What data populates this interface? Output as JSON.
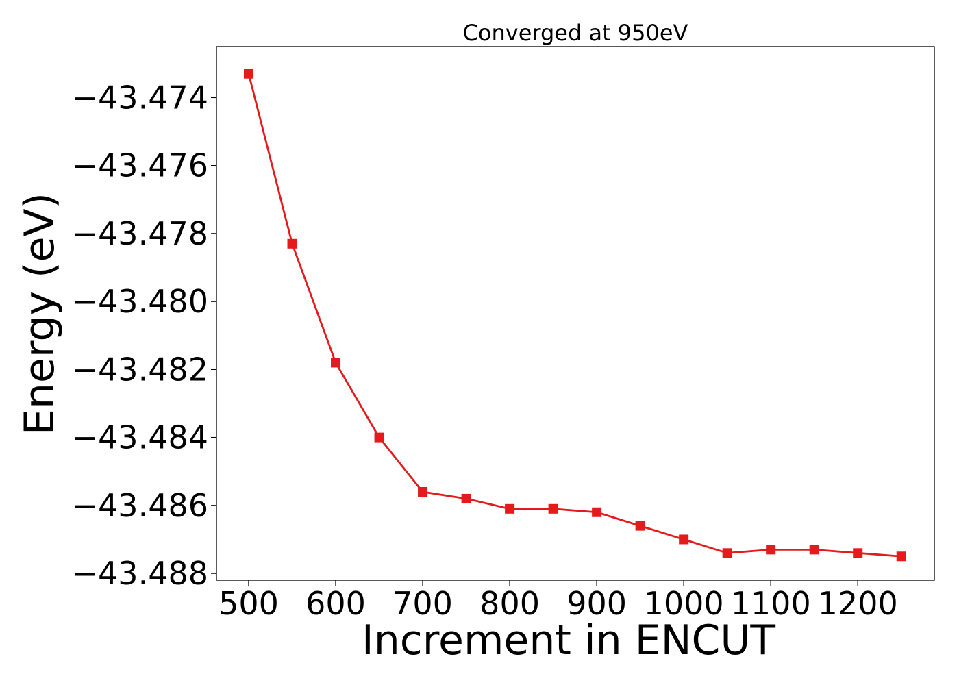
{
  "chart_data": {
    "type": "line",
    "title": "Converged at 950eV",
    "xlabel": "Increment in ENCUT",
    "ylabel": "Energy (eV)",
    "xlim": [
      463,
      1288
    ],
    "ylim": [
      -43.4882,
      -43.4725
    ],
    "x_ticks": [
      500,
      600,
      700,
      800,
      900,
      1000,
      1100,
      1200
    ],
    "y_ticks": [
      -43.474,
      -43.476,
      -43.478,
      -43.48,
      -43.482,
      -43.484,
      -43.486,
      -43.488
    ],
    "x_tick_labels": [
      "500",
      "600",
      "700",
      "800",
      "900",
      "1000",
      "1100",
      "1200"
    ],
    "y_tick_labels": [
      "−43.474",
      "−43.476",
      "−43.478",
      "−43.480",
      "−43.482",
      "−43.484",
      "−43.486",
      "−43.488"
    ],
    "grid": false,
    "series": [
      {
        "color": "#e41a1c",
        "marker": "square",
        "x": [
          500,
          550,
          600,
          650,
          700,
          750,
          800,
          850,
          900,
          950,
          1000,
          1050,
          1100,
          1150,
          1200,
          1250
        ],
        "y": [
          -43.4733,
          -43.4783,
          -43.4818,
          -43.484,
          -43.4856,
          -43.4858,
          -43.4861,
          -43.4861,
          -43.4862,
          -43.4866,
          -43.487,
          -43.4874,
          -43.4873,
          -43.4873,
          -43.4874,
          -43.4875
        ]
      }
    ]
  }
}
